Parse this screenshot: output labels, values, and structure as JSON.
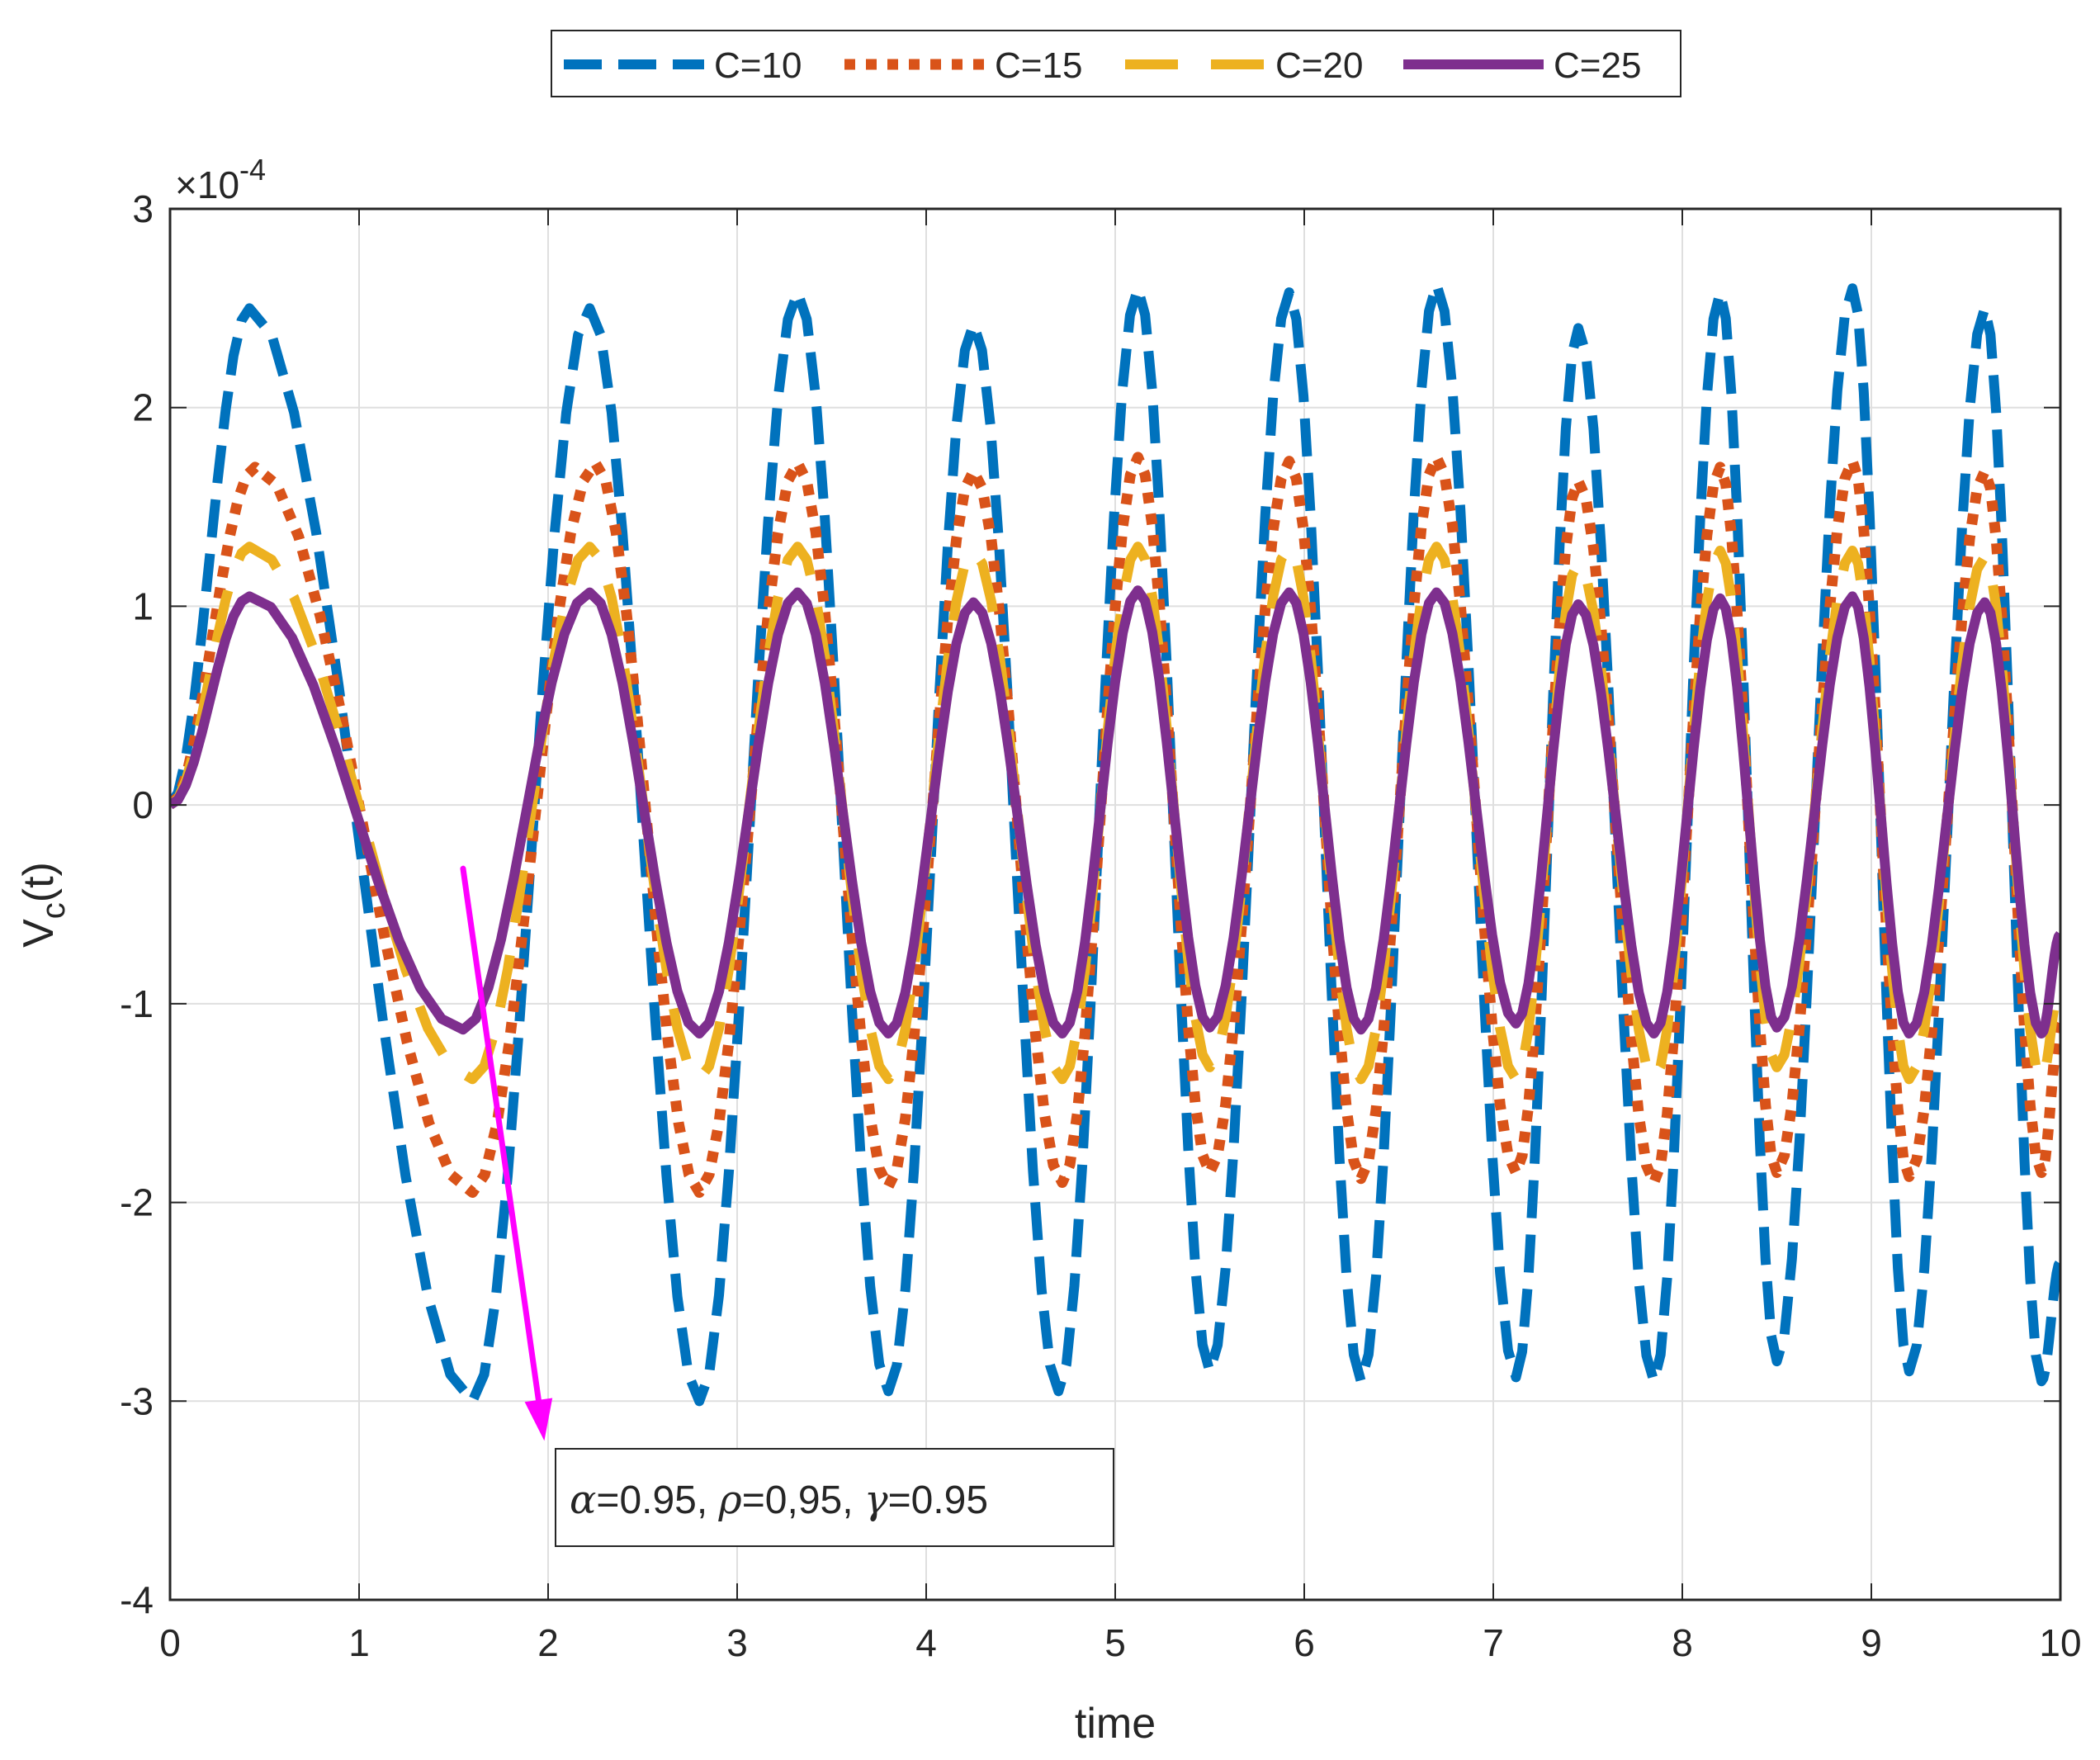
{
  "chart_data": {
    "type": "line",
    "xlabel": "time",
    "ylabel_main": "V",
    "ylabel_sub": "c",
    "ylabel_tail": "(t)",
    "x_range": [
      0,
      10
    ],
    "y_range": [
      -4,
      3
    ],
    "y_scale_prefix": "×10",
    "y_scale_exponent": "-4",
    "grid": true,
    "x_ticks": [
      0,
      1,
      2,
      3,
      4,
      5,
      6,
      7,
      8,
      9,
      10
    ],
    "x_tick_labels": [
      "0",
      "1",
      "2",
      "3",
      "4",
      "5",
      "6",
      "7",
      "8",
      "9",
      "10"
    ],
    "y_ticks": [
      -4,
      -3,
      -2,
      -1,
      0,
      1,
      2,
      3
    ],
    "y_tick_labels": [
      "-4",
      "-3",
      "-2",
      "-1",
      "0",
      "1",
      "2",
      "3"
    ],
    "legend_position": "top-center-outside",
    "series": [
      {
        "name": "C=10",
        "color": "#0072BD",
        "style": "dashed",
        "peaks": [
          [
            0,
            0
          ],
          [
            0.42,
            2.5
          ],
          [
            1.6,
            -3.0
          ],
          [
            2.22,
            2.5
          ],
          [
            2.8,
            -3.0
          ],
          [
            3.32,
            2.58
          ],
          [
            3.8,
            -2.95
          ],
          [
            4.25,
            2.42
          ],
          [
            4.7,
            -2.95
          ],
          [
            5.12,
            2.6
          ],
          [
            5.5,
            -2.85
          ],
          [
            5.92,
            2.58
          ],
          [
            6.3,
            -2.9
          ],
          [
            6.7,
            2.62
          ],
          [
            7.12,
            -2.88
          ],
          [
            7.45,
            2.4
          ],
          [
            7.85,
            -2.9
          ],
          [
            8.2,
            2.58
          ],
          [
            8.5,
            -2.8
          ],
          [
            8.9,
            2.6
          ],
          [
            9.2,
            -2.85
          ],
          [
            9.6,
            2.5
          ],
          [
            9.9,
            -2.9
          ],
          [
            10.0,
            -2.3
          ]
        ]
      },
      {
        "name": "C=15",
        "color": "#D95319",
        "style": "dotted",
        "peaks": [
          [
            0,
            0
          ],
          [
            0.45,
            1.7
          ],
          [
            1.6,
            -1.95
          ],
          [
            2.25,
            1.72
          ],
          [
            2.8,
            -1.95
          ],
          [
            3.32,
            1.72
          ],
          [
            3.8,
            -1.92
          ],
          [
            4.25,
            1.68
          ],
          [
            4.72,
            -1.9
          ],
          [
            5.12,
            1.75
          ],
          [
            5.5,
            -1.85
          ],
          [
            5.92,
            1.73
          ],
          [
            6.3,
            -1.88
          ],
          [
            6.7,
            1.75
          ],
          [
            7.12,
            -1.85
          ],
          [
            7.45,
            1.63
          ],
          [
            7.85,
            -1.9
          ],
          [
            8.2,
            1.7
          ],
          [
            8.5,
            -1.85
          ],
          [
            8.9,
            1.73
          ],
          [
            9.2,
            -1.87
          ],
          [
            9.6,
            1.68
          ],
          [
            9.9,
            -1.85
          ],
          [
            10.0,
            -1.1
          ]
        ]
      },
      {
        "name": "C=20",
        "color": "#EDB120",
        "style": "longdash",
        "peaks": [
          [
            0,
            0
          ],
          [
            0.42,
            1.3
          ],
          [
            1.6,
            -1.38
          ],
          [
            2.22,
            1.3
          ],
          [
            2.8,
            -1.38
          ],
          [
            3.32,
            1.3
          ],
          [
            3.8,
            -1.38
          ],
          [
            4.25,
            1.28
          ],
          [
            4.72,
            -1.38
          ],
          [
            5.12,
            1.3
          ],
          [
            5.5,
            -1.32
          ],
          [
            5.92,
            1.3
          ],
          [
            6.3,
            -1.38
          ],
          [
            6.7,
            1.3
          ],
          [
            7.12,
            -1.38
          ],
          [
            7.45,
            1.22
          ],
          [
            7.85,
            -1.38
          ],
          [
            8.2,
            1.28
          ],
          [
            8.5,
            -1.32
          ],
          [
            8.9,
            1.28
          ],
          [
            9.2,
            -1.38
          ],
          [
            9.6,
            1.25
          ],
          [
            9.9,
            -1.38
          ],
          [
            10.0,
            -0.9
          ]
        ]
      },
      {
        "name": "C=25",
        "color": "#7E2F8E",
        "style": "solid",
        "peaks": [
          [
            0,
            0
          ],
          [
            0.42,
            1.05
          ],
          [
            1.55,
            -1.13
          ],
          [
            2.22,
            1.07
          ],
          [
            2.8,
            -1.15
          ],
          [
            3.32,
            1.07
          ],
          [
            3.8,
            -1.15
          ],
          [
            4.25,
            1.02
          ],
          [
            4.72,
            -1.15
          ],
          [
            5.12,
            1.08
          ],
          [
            5.5,
            -1.12
          ],
          [
            5.92,
            1.07
          ],
          [
            6.3,
            -1.13
          ],
          [
            6.7,
            1.07
          ],
          [
            7.12,
            -1.1
          ],
          [
            7.45,
            1.01
          ],
          [
            7.85,
            -1.15
          ],
          [
            8.2,
            1.04
          ],
          [
            8.5,
            -1.12
          ],
          [
            8.9,
            1.05
          ],
          [
            9.2,
            -1.15
          ],
          [
            9.6,
            1.02
          ],
          [
            9.9,
            -1.15
          ],
          [
            10.0,
            -0.65
          ]
        ]
      }
    ],
    "annotation": {
      "alpha_symbol": "α",
      "alpha_value": "=0.95, ",
      "rho_symbol": "ρ",
      "rho_value": "=0,95, ",
      "gamma_symbol": "γ",
      "gamma_value": "=0.95",
      "arrow_color": "#FF00FF",
      "arrow_from": [
        1.55,
        -0.32
      ],
      "arrow_to": [
        1.98,
        -3.2
      ]
    }
  }
}
